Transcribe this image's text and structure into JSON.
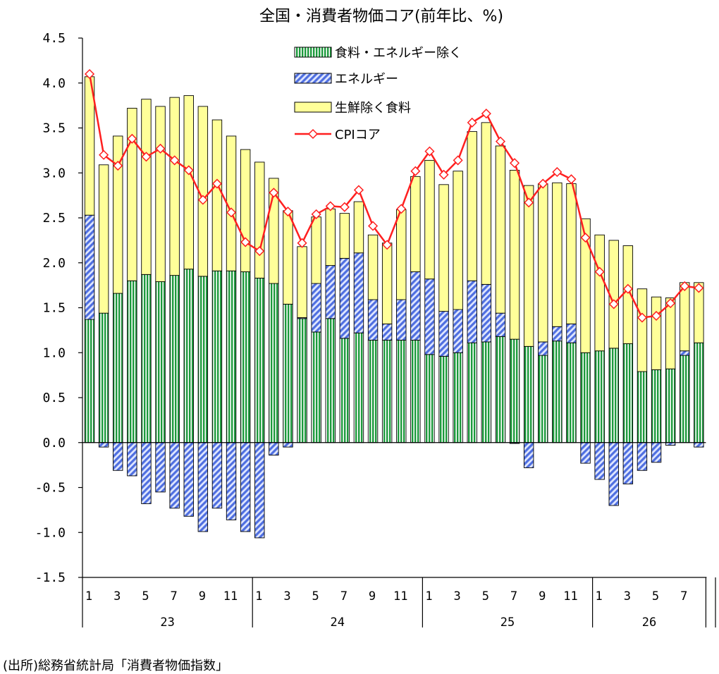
{
  "colors": {
    "food_energy": "#1c9a3c",
    "energy": "#4f6fe0",
    "fresh_food": "#ffff99",
    "cpi_line": "#ff1f1f",
    "marker_fill": "#ffffff"
  },
  "source_text": "(出所)総務省統計局「消費者物価指数」",
  "chart_data": {
    "type": "bar",
    "title": "全国・消費者物価コア(前年比、%)",
    "ylim": [
      -1.5,
      4.5
    ],
    "yticks": [
      "4.5",
      "4.0",
      "3.5",
      "3.0",
      "2.5",
      "2.0",
      "1.5",
      "1.0",
      "0.5",
      "0.0",
      "-0.5",
      "-1.0",
      "-1.5"
    ],
    "ytick_values": [
      4.5,
      4.0,
      3.5,
      3.0,
      2.5,
      2.0,
      1.5,
      1.0,
      0.5,
      0.0,
      -0.5,
      -1.0,
      -1.5
    ],
    "month_labels": [
      "1",
      "",
      "3",
      "",
      "5",
      "",
      "7",
      "",
      "9",
      "",
      "11",
      "",
      "1",
      "",
      "3",
      "",
      "5",
      "",
      "7",
      "",
      "9",
      "",
      "11",
      "",
      "1",
      "",
      "3",
      "",
      "5",
      "",
      "7",
      "",
      "9",
      "",
      "11",
      "",
      "1",
      "",
      "3",
      "",
      "5",
      "",
      "7",
      ""
    ],
    "years": [
      "23",
      "24",
      "25",
      "26"
    ],
    "legend": [
      "食料・エネルギー除く",
      "エネルギー",
      "生鮮除く食料",
      "CPIコア"
    ],
    "grid": false,
    "series": [
      {
        "name": "食料・エネルギー除く",
        "kind": "stacked-bar",
        "values": [
          1.37,
          1.44,
          1.66,
          1.8,
          1.87,
          1.79,
          1.86,
          1.93,
          1.85,
          1.91,
          1.91,
          1.9,
          1.83,
          1.77,
          1.54,
          1.38,
          1.23,
          1.38,
          1.16,
          1.22,
          1.14,
          1.14,
          1.14,
          1.14,
          0.98,
          0.96,
          1.0,
          1.11,
          1.12,
          1.18,
          1.15,
          1.07,
          0.97,
          1.13,
          1.11,
          1.0,
          1.02,
          1.05,
          1.1,
          0.79,
          0.81,
          0.82,
          0.97,
          1.11
        ]
      },
      {
        "name": "エネルギー",
        "kind": "stacked-bar",
        "values": [
          1.16,
          -0.05,
          -0.31,
          -0.37,
          -0.68,
          -0.55,
          -0.73,
          -0.82,
          -0.99,
          -0.73,
          -0.86,
          -0.99,
          -1.06,
          -0.14,
          -0.05,
          0.01,
          0.54,
          0.59,
          0.89,
          0.89,
          0.45,
          0.18,
          0.45,
          0.76,
          0.84,
          0.5,
          0.48,
          0.69,
          0.64,
          0.26,
          -0.01,
          -0.28,
          0.15,
          0.16,
          0.21,
          -0.23,
          -0.41,
          -0.7,
          -0.46,
          -0.31,
          -0.22,
          -0.03,
          0.05,
          -0.05
        ]
      },
      {
        "name": "生鮮除く食料",
        "kind": "stacked-bar",
        "values": [
          1.54,
          1.65,
          1.75,
          1.92,
          1.95,
          1.95,
          1.98,
          1.93,
          1.89,
          1.68,
          1.5,
          1.36,
          1.29,
          1.17,
          1.04,
          0.79,
          0.74,
          0.63,
          0.5,
          0.57,
          0.72,
          0.9,
          1.0,
          1.06,
          1.32,
          1.41,
          1.54,
          1.66,
          1.8,
          1.86,
          1.88,
          1.79,
          1.76,
          1.6,
          1.56,
          1.49,
          1.29,
          1.2,
          1.09,
          0.92,
          0.81,
          0.79,
          0.76,
          0.67
        ]
      },
      {
        "name": "CPIコア",
        "kind": "line",
        "values": [
          4.1,
          3.2,
          3.08,
          3.38,
          3.18,
          3.27,
          3.14,
          3.03,
          2.7,
          2.88,
          2.56,
          2.23,
          2.13,
          2.78,
          2.57,
          2.22,
          2.54,
          2.63,
          2.62,
          2.81,
          2.41,
          2.2,
          2.6,
          3.02,
          3.24,
          2.98,
          3.14,
          3.56,
          3.66,
          3.35,
          3.11,
          2.67,
          2.88,
          3.01,
          2.93,
          2.28,
          1.9,
          1.54,
          1.71,
          1.39,
          1.41,
          1.55,
          1.74,
          1.72
        ]
      }
    ]
  }
}
